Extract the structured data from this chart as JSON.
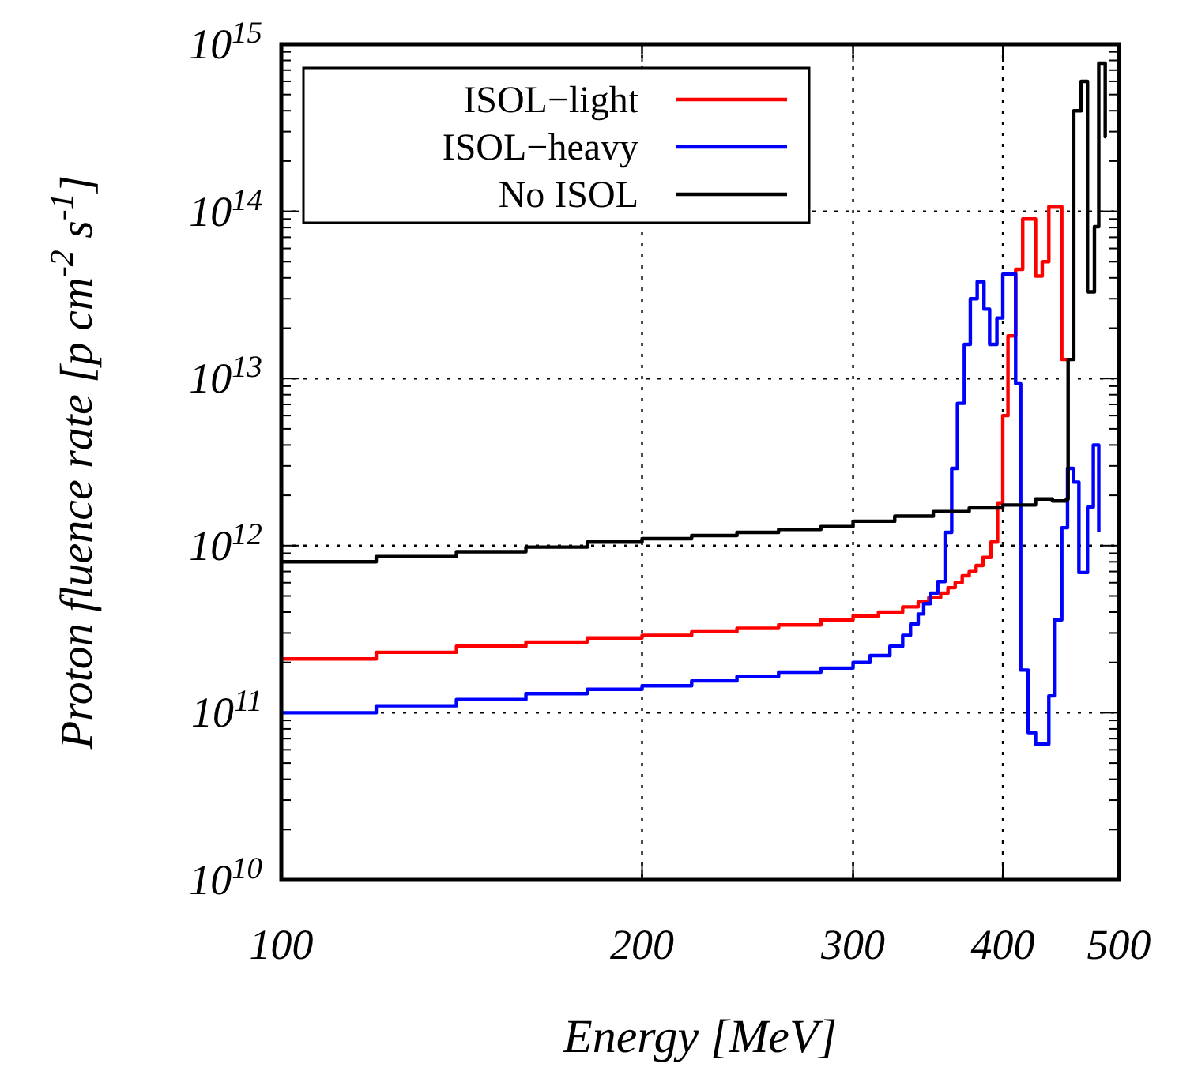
{
  "chart_data": {
    "type": "step",
    "xlabel": "Energy [MeV]",
    "ylabel": "Proton fluence rate [p cm$^{-2}$ s$^{-1}$]",
    "log": "xy",
    "xlim": [
      100,
      500
    ],
    "ylim": [
      10000000000.0,
      1000000000000000.0
    ],
    "xticks": [
      100,
      200,
      300,
      400,
      500
    ],
    "yticks": [
      {
        "value": 10000000000.0,
        "label": "10$^{10}$"
      },
      {
        "value": 100000000000.0,
        "label": "10$^{11}$"
      },
      {
        "value": 1000000000000.0,
        "label": "10$^{12}$"
      },
      {
        "value": 10000000000000.0,
        "label": "10$^{13}$"
      },
      {
        "value": 100000000000000.0,
        "label": "10$^{14}$"
      },
      {
        "value": 1000000000000000.0,
        "label": "10$^{15}$"
      }
    ],
    "grid": true,
    "legend": "top left",
    "line_style": "solid",
    "marker": "none",
    "series": [
      {
        "name": "ISOL−light",
        "color": "#ff0000",
        "x": [
          100,
          120,
          140,
          160,
          180,
          200,
          220,
          240,
          260,
          282,
          300,
          315,
          330,
          340,
          347,
          355,
          360,
          365,
          370,
          375,
          380,
          385,
          391,
          396,
          400,
          404,
          410,
          415.6,
          426,
          431.5,
          437,
          448,
          455
        ],
        "values": [
          210000000000.0,
          230000000000.0,
          250000000000.0,
          265000000000.0,
          280000000000.0,
          290000000000.0,
          305000000000.0,
          320000000000.0,
          335000000000.0,
          360000000000.0,
          380000000000.0,
          400000000000.0,
          430000000000.0,
          460000000000.0,
          490000000000.0,
          520000000000.0,
          560000000000.0,
          600000000000.0,
          660000000000.0,
          700000000000.0,
          760000000000.0,
          850000000000.0,
          1050000000000.0,
          1800000000000.0,
          6000000000000.0,
          18000000000000.0,
          45000000000000.0,
          90000000000000.0,
          41000000000000.0,
          50000000000000.0,
          107000000000000.0,
          13000000000000.0,
          13000000000000.0
        ]
      },
      {
        "name": "ISOL−heavy",
        "color": "#0000ff",
        "x": [
          100,
          120,
          140,
          160,
          180,
          200,
          220,
          240,
          260,
          282,
          300,
          310,
          322,
          330,
          335,
          340,
          343.6,
          348,
          353,
          358,
          362.6,
          366.6,
          371.5,
          375.8,
          380.8,
          385.8,
          390,
          395.5,
          400,
          410,
          414,
          420,
          426,
          437,
          441.6,
          448,
          453,
          458,
          463,
          470.7,
          476,
          481
        ],
        "values": [
          100000000000.0,
          110000000000.0,
          120000000000.0,
          130000000000.0,
          138000000000.0,
          145000000000.0,
          155000000000.0,
          165000000000.0,
          175000000000.0,
          185000000000.0,
          200000000000.0,
          220000000000.0,
          250000000000.0,
          290000000000.0,
          340000000000.0,
          390000000000.0,
          450000000000.0,
          520000000000.0,
          610000000000.0,
          1200000000000.0,
          2900000000000.0,
          7100000000000.0,
          16000000000000.0,
          30000000000000.0,
          38000000000000.0,
          26000000000000.0,
          16000000000000.0,
          23000000000000.0,
          42000000000000.0,
          9300000000000.0,
          180000000000.0,
          76000000000.0,
          65000000000.0,
          126000000000.0,
          360000000000.0,
          1280000000000.0,
          2900000000000.0,
          2400000000000.0,
          690000000000.0,
          1700000000000.0,
          4000000000000.0,
          1200000000000.0
        ]
      },
      {
        "name": "No ISOL",
        "color": "#000000",
        "x": [
          100,
          120,
          140,
          160,
          180,
          200,
          220,
          240,
          260,
          282,
          300,
          325,
          350,
          375,
          400,
          426,
          440,
          445,
          452,
          453.5,
          458.5,
          465,
          470.7,
          477,
          481,
          487,
          488
        ],
        "values": [
          800000000000.0,
          860000000000.0,
          920000000000.0,
          980000000000.0,
          1050000000000.0,
          1100000000000.0,
          1150000000000.0,
          1200000000000.0,
          1250000000000.0,
          1300000000000.0,
          1400000000000.0,
          1500000000000.0,
          1600000000000.0,
          1680000000000.0,
          1750000000000.0,
          1900000000000.0,
          1850000000000.0,
          1850000000000.0,
          1900000000000.0,
          13000000000000.0,
          400000000000000.0,
          600000000000000.0,
          33000000000000.0,
          81000000000000.0,
          770000000000000.0,
          280000000000000.0,
          280000000000000.0
        ]
      }
    ]
  }
}
